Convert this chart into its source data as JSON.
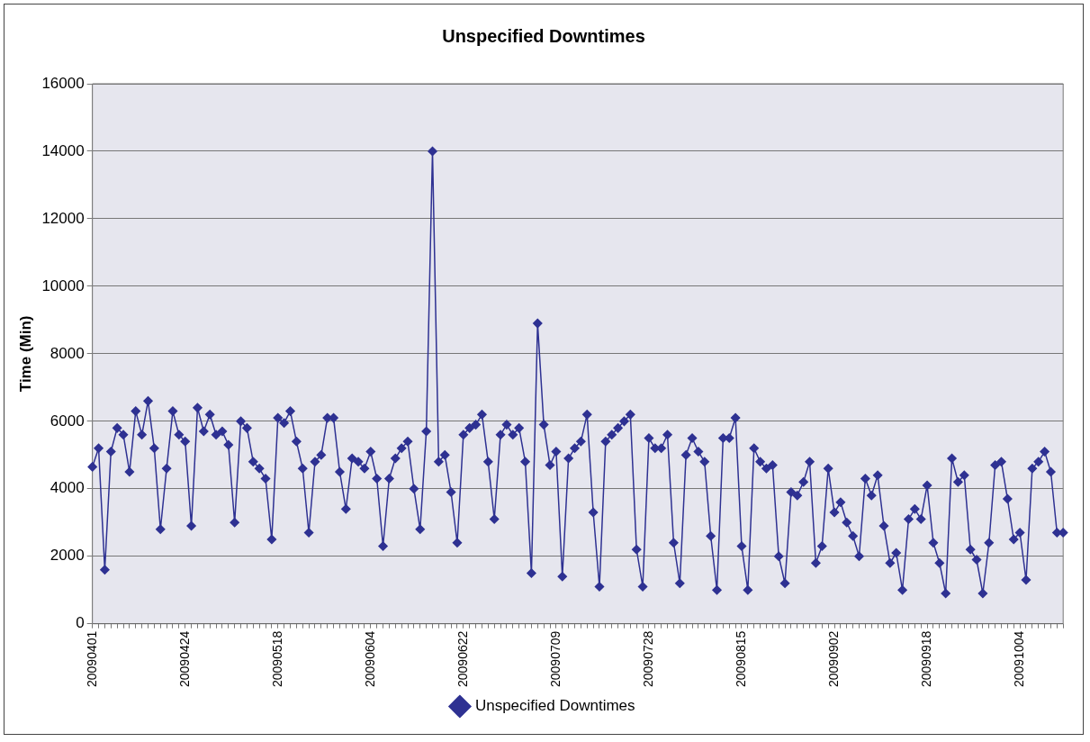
{
  "chart_data": {
    "type": "line",
    "title": "Unspecified Downtimes",
    "ylabel": "Time (Min)",
    "categories": [
      "20090401",
      null,
      null,
      null,
      null,
      null,
      null,
      null,
      null,
      null,
      null,
      null,
      null,
      null,
      null,
      "20090424",
      null,
      null,
      null,
      null,
      null,
      null,
      null,
      null,
      null,
      null,
      null,
      null,
      null,
      null,
      "20090518",
      null,
      null,
      null,
      null,
      null,
      null,
      null,
      null,
      null,
      null,
      null,
      null,
      null,
      null,
      "20090604",
      null,
      null,
      null,
      null,
      null,
      null,
      null,
      null,
      null,
      null,
      null,
      null,
      null,
      null,
      "20090622",
      null,
      null,
      null,
      null,
      null,
      null,
      null,
      null,
      null,
      null,
      null,
      null,
      null,
      null,
      "20090709",
      null,
      null,
      null,
      null,
      null,
      null,
      null,
      null,
      null,
      null,
      null,
      null,
      null,
      null,
      "20090728",
      null,
      null,
      null,
      null,
      null,
      null,
      null,
      null,
      null,
      null,
      null,
      null,
      null,
      null,
      "20090815",
      null,
      null,
      null,
      null,
      null,
      null,
      null,
      null,
      null,
      null,
      null,
      null,
      null,
      null,
      "20090902",
      null,
      null,
      null,
      null,
      null,
      null,
      null,
      null,
      null,
      null,
      null,
      null,
      null,
      null,
      "20090918",
      null,
      null,
      null,
      null,
      null,
      null,
      null,
      null,
      null,
      null,
      null,
      null,
      null,
      null,
      "20091004",
      null,
      null,
      null,
      null,
      null,
      null,
      null
    ],
    "series": [
      {
        "name": "Unspecified Downtimes",
        "color": "#2e3192",
        "values": [
          4650,
          5200,
          1600,
          5100,
          5800,
          5600,
          4500,
          6300,
          5600,
          6600,
          5200,
          2800,
          4600,
          6300,
          5600,
          5400,
          2900,
          6400,
          5700,
          6200,
          5600,
          5700,
          5300,
          3000,
          6000,
          5800,
          4800,
          4600,
          4300,
          2500,
          6100,
          5950,
          6300,
          5400,
          4600,
          2700,
          4800,
          5000,
          6100,
          6100,
          4500,
          3400,
          4900,
          4800,
          4600,
          5100,
          4300,
          2300,
          4300,
          4900,
          5200,
          5400,
          4000,
          2800,
          5700,
          14000,
          4800,
          5000,
          3900,
          2400,
          5600,
          5800,
          5900,
          6200,
          4800,
          3100,
          5600,
          5900,
          5600,
          5800,
          4800,
          1500,
          8900,
          5900,
          4700,
          5100,
          1400,
          4900,
          5200,
          5400,
          6200,
          3300,
          1100,
          5400,
          5600,
          5800,
          6000,
          6200,
          2200,
          1100,
          5500,
          5200,
          5200,
          5600,
          2400,
          1200,
          5000,
          5500,
          5100,
          4800,
          2600,
          1000,
          5500,
          5500,
          6100,
          2300,
          1000,
          5200,
          4800,
          4600,
          4700,
          2000,
          1200,
          3900,
          3800,
          4200,
          4800,
          1800,
          2300,
          4600,
          3300,
          3600,
          3000,
          2600,
          2000,
          4300,
          3800,
          4400,
          2900,
          1800,
          2100,
          1000,
          3100,
          3400,
          3100,
          4100,
          2400,
          1800,
          900,
          4900,
          4200,
          4400,
          2200,
          1900,
          900,
          2400,
          4700,
          4800,
          3700,
          2500,
          2700,
          1300,
          4600,
          4800,
          5100,
          4500,
          2700,
          2700
        ]
      }
    ],
    "ylim": [
      0,
      16000
    ],
    "yticks": [
      0,
      2000,
      4000,
      6000,
      8000,
      10000,
      12000,
      14000,
      16000
    ],
    "grid": "y",
    "legend": "bottom",
    "marker": "diamond",
    "line_style": "solid"
  }
}
